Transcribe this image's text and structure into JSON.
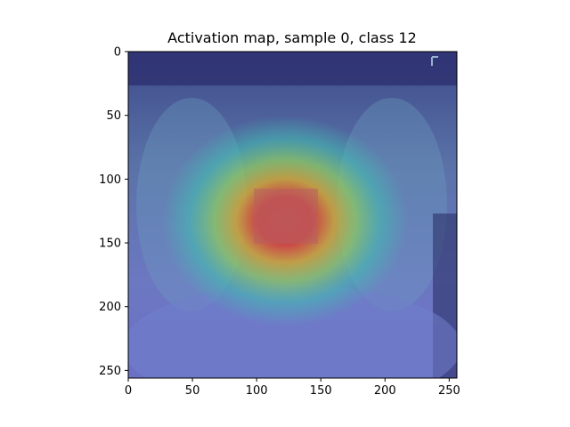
{
  "chart_data": {
    "type": "heatmap",
    "title": "Activation map, sample 0, class 12",
    "xlabel": "",
    "ylabel": "",
    "image_size": [
      256,
      256
    ],
    "xlim": [
      0,
      256
    ],
    "ylim": [
      256,
      0
    ],
    "x_ticks": [
      0,
      50,
      100,
      150,
      200,
      250
    ],
    "y_ticks": [
      0,
      50,
      100,
      150,
      200,
      250
    ],
    "x_tick_labels": [
      "0",
      "50",
      "100",
      "150",
      "200",
      "250"
    ],
    "y_tick_labels": [
      "0",
      "50",
      "100",
      "150",
      "200",
      "250"
    ],
    "colormap": "jet",
    "overlay": "activation heatmap over chest x-ray",
    "peak": {
      "x": 122,
      "y": 128
    },
    "colors": {
      "low": "#30307f",
      "mid": "#3fbfb0",
      "high": "#e0443a",
      "background": "#ffffff"
    }
  }
}
